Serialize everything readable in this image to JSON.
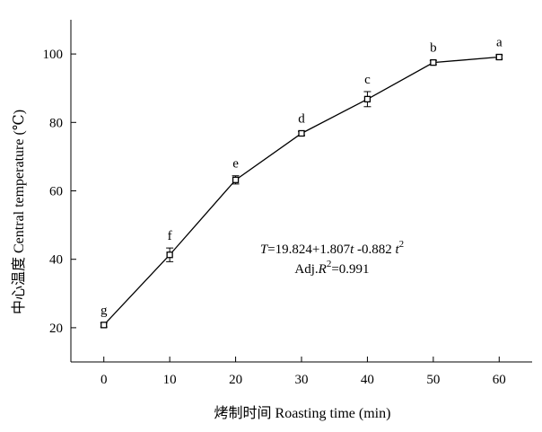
{
  "chart_data": {
    "type": "line",
    "xlabel": "烤制时间 Roasting time (min)",
    "ylabel": "中心温度 Central temperature (℃)",
    "xlim": [
      -5,
      65
    ],
    "ylim": [
      10,
      110
    ],
    "x_ticks": [
      0,
      10,
      20,
      30,
      40,
      50,
      60
    ],
    "y_ticks": [
      20,
      40,
      60,
      80,
      100
    ],
    "grid": false,
    "series": [
      {
        "x": [
          0,
          10,
          20,
          30,
          40,
          50,
          60
        ],
        "y": [
          20.8,
          41.3,
          63.2,
          76.8,
          86.8,
          97.5,
          99.1
        ],
        "error": [
          0.6,
          2.0,
          1.2,
          0.6,
          2.2,
          0.6,
          0.6
        ],
        "labels": [
          "g",
          "f",
          "e",
          "d",
          "c",
          "b",
          "a"
        ]
      }
    ],
    "annotations": {
      "equation_T": "T",
      "equation_body": "=19.824+1.807",
      "equation_t": "t",
      "equation_tail": " -0.882 ",
      "equation_t2": "t",
      "equation_sup": "2",
      "r2_prefix": "Adj.",
      "r2_R": "R",
      "r2_sup": "2",
      "r2_value": "=0.991"
    }
  }
}
